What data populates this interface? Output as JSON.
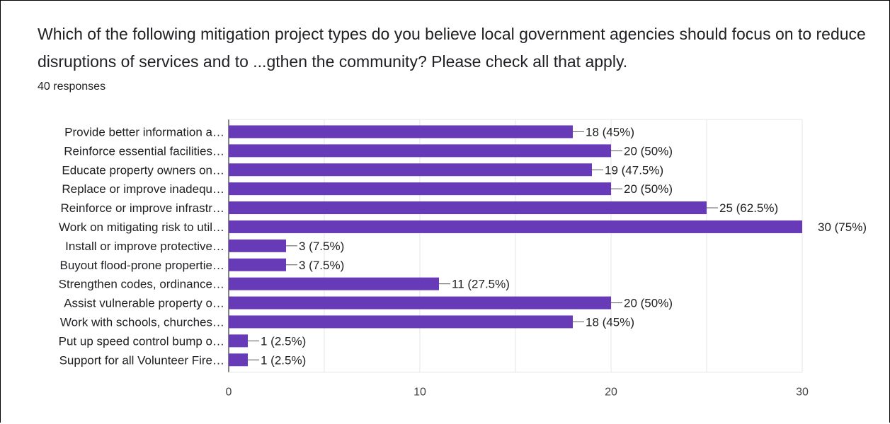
{
  "question": "Which of the following mitigation project types do you believe local government agencies should focus on to reduce disruptions of services and to ...gthen the community? Please check all that apply.",
  "responses_label": "40 responses",
  "colors": {
    "bar": "#673ab7",
    "grid": "#e6e6e6",
    "connector": "#555555"
  },
  "chart_data": {
    "type": "bar",
    "orientation": "horizontal",
    "categories": [
      "Provide better information a…",
      "Reinforce essential facilities…",
      "Educate property owners on…",
      "Replace or improve inadequ…",
      "Reinforce or improve infrastr…",
      "Work on mitigating risk to util…",
      "Install or improve protective…",
      "Buyout flood-prone propertie…",
      "Strengthen codes, ordinance…",
      "Assist vulnerable property o…",
      "Work with schools, churches…",
      "Put up speed control bump o…",
      "Support for all Volunteer Fire…"
    ],
    "values": [
      18,
      20,
      19,
      20,
      25,
      30,
      3,
      3,
      11,
      20,
      18,
      1,
      1
    ],
    "data_labels": [
      "18 (45%)",
      "20 (50%)",
      "19 (47.5%)",
      "20 (50%)",
      "25 (62.5%)",
      "30 (75%)",
      "3 (7.5%)",
      "3 (7.5%)",
      "11 (27.5%)",
      "20 (50%)",
      "18 (45%)",
      "1 (2.5%)",
      "1 (2.5%)"
    ],
    "xlim": [
      0,
      30
    ],
    "xticks": [
      0,
      10,
      20,
      30
    ],
    "grid": true
  }
}
